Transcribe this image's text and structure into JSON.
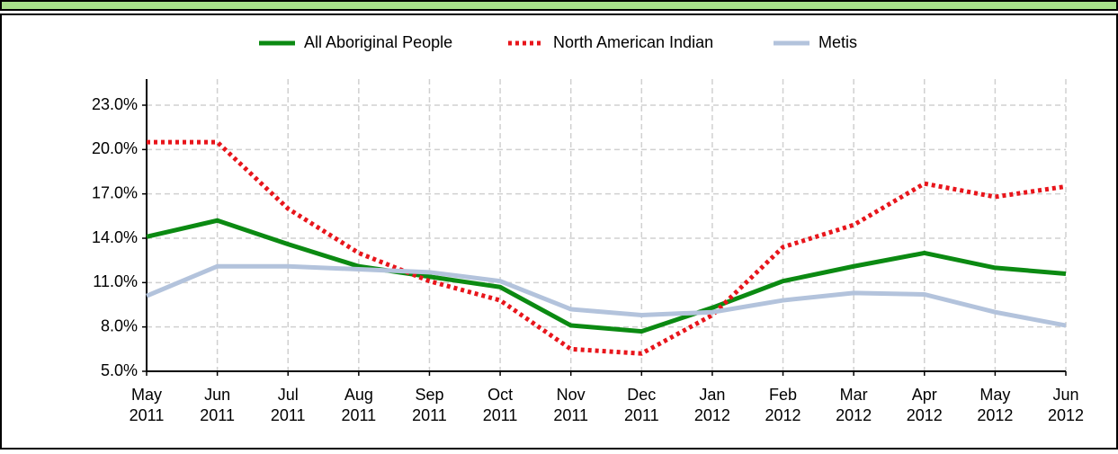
{
  "chart_data": {
    "type": "line",
    "categories": [
      [
        "May",
        "2011"
      ],
      [
        "Jun",
        "2011"
      ],
      [
        "Jul",
        "2011"
      ],
      [
        "Aug",
        "2011"
      ],
      [
        "Sep",
        "2011"
      ],
      [
        "Oct",
        "2011"
      ],
      [
        "Nov",
        "2011"
      ],
      [
        "Dec",
        "2011"
      ],
      [
        "Jan",
        "2012"
      ],
      [
        "Feb",
        "2012"
      ],
      [
        "Mar",
        "2012"
      ],
      [
        "Apr",
        "2012"
      ],
      [
        "May",
        "2012"
      ],
      [
        "Jun",
        "2012"
      ]
    ],
    "series": [
      {
        "name": "All Aboriginal People",
        "color": "#0b8a12",
        "dash": "none",
        "values": [
          14.1,
          15.2,
          13.6,
          12.1,
          11.4,
          10.7,
          8.1,
          7.7,
          9.3,
          11.1,
          12.1,
          13.0,
          12.0,
          11.6
        ]
      },
      {
        "name": "North American Indian",
        "color": "#e8151b",
        "dash": "dotted",
        "values": [
          20.5,
          20.5,
          16.0,
          13.0,
          11.1,
          9.8,
          6.5,
          6.2,
          8.8,
          13.4,
          14.9,
          17.7,
          16.8,
          17.5
        ]
      },
      {
        "name": "Metis",
        "color": "#b3c3dc",
        "dash": "none",
        "values": [
          10.1,
          12.1,
          12.1,
          11.9,
          11.7,
          11.1,
          9.2,
          8.8,
          9.0,
          9.8,
          10.3,
          10.2,
          9.0,
          8.1
        ]
      }
    ],
    "ylim": [
      5,
      23
    ],
    "yticks": [
      {
        "value": 5,
        "label": "5.0%"
      },
      {
        "value": 8,
        "label": "8.0%"
      },
      {
        "value": 11,
        "label": "11.0%"
      },
      {
        "value": 14,
        "label": "14.0%"
      },
      {
        "value": 17,
        "label": "17.0%"
      },
      {
        "value": 20,
        "label": "20.0%"
      },
      {
        "value": 23,
        "label": "23.0%"
      }
    ],
    "grid": true,
    "legend": "top"
  }
}
